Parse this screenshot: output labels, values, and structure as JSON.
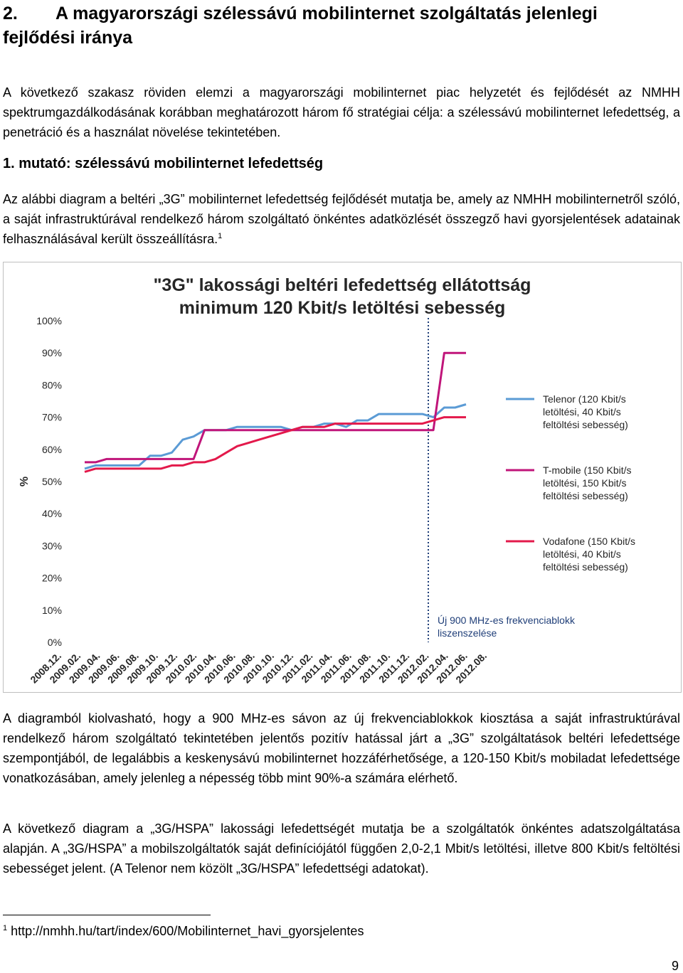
{
  "heading": {
    "number": "2.",
    "title": "A magyarországi szélessávú mobilinternet szolgáltatás jelenlegi fejlődési iránya"
  },
  "intro": "A következő szakasz röviden elemzi a magyarországi mobilinternet piac helyzetét és fejlődését az NMHH spektrumgazdálkodásának korábban meghatározott három fő stratégiai célja: a szélessávú mobilinternet lefedettség, a penetráció és a használat növelése tekintetében.",
  "subheading": "1. mutató: szélessávú mobilinternet lefedettség",
  "para2": "Az alábbi diagram a beltéri „3G” mobilinternet lefedettség fejlődését mutatja be, amely az NMHH mobilinternetről szóló, a saját infrastruktúrával rendelkező három szolgáltató önkéntes adatközlését összegző havi gyorsjelentések adatainak felhasználásával került összeállításra.",
  "para2_footnote_ref": "1",
  "para3": "A diagramból kiolvasható, hogy a 900 MHz-es sávon az új frekvenciablokkok kiosztása a saját infrastruktúrával rendelkező három szolgáltató tekintetében jelentős pozitív hatással járt a „3G” szolgáltatások beltéri lefedettsége szempontjából, de legalábbis a keskenysávú mobilinternet hozzáférhetősége, a 120-150 Kbit/s mobiladat lefedettsége vonatkozásában, amely jelenleg a népesség több mint 90%-a számára elérhető.",
  "para4": "A következő diagram a „3G/HSPA” lakossági lefedettségét mutatja be a szolgáltatók önkéntes adatszolgáltatása alapján. A „3G/HSPA” a mobilszolgáltatók saját definíciójától függően 2,0-2,1 Mbit/s letöltési, illetve 800 Kbit/s feltöltési sebességet jelent. (A Telenor nem közölt „3G/HSPA” lefedettségi adatokat).",
  "footnote": {
    "num": "1",
    "text": "http://nmhh.hu/tart/index/600/Mobilinternet_havi_gyorsjelentes"
  },
  "page_number": "9",
  "chart_data": {
    "type": "line",
    "title_line1": "\"3G\" lakossági beltéri lefedettség ellátottság",
    "title_line2": "minimum 120 Kbit/s letöltési sebesség",
    "ylabel": "%",
    "ylim": [
      0,
      100
    ],
    "y_ticks": [
      "0%",
      "10%",
      "20%",
      "30%",
      "40%",
      "50%",
      "60%",
      "70%",
      "80%",
      "90%",
      "100%"
    ],
    "x_labels": [
      "2008.12.",
      "2009.02.",
      "2009.04.",
      "2009.06.",
      "2009.08.",
      "2009.10.",
      "2009.12.",
      "2010.02.",
      "2010.04.",
      "2010.06.",
      "2010.08.",
      "2010.10.",
      "2010.12.",
      "2011.02.",
      "2011.04.",
      "2011.06.",
      "2011.08.",
      "2011.10.",
      "2011.12.",
      "2012.02.",
      "2012.04.",
      "2012.06.",
      "2012.08."
    ],
    "grid": false,
    "legend_position": "right",
    "series": [
      {
        "name": "Telenor (120 Kbit/s letöltési, 40 Kbit/s feltöltési sebesség)",
        "legend_lines": [
          "Telenor (120 Kbit/s",
          "letöltési, 40 Kbit/s",
          "feltöltési sebesség)"
        ],
        "color": "#5b9bd5",
        "values": [
          54,
          55,
          55,
          55,
          55,
          55,
          58,
          58,
          59,
          63,
          64,
          66,
          66,
          66,
          67,
          67,
          67,
          67,
          67,
          66,
          67,
          67,
          68,
          68,
          67,
          69,
          69,
          71,
          71,
          71,
          71,
          71,
          70,
          73,
          73,
          74
        ]
      },
      {
        "name": "T-mobile (150 Kbit/s letöltési, 150 Kbit/s feltöltési sebesség)",
        "legend_lines": [
          "T-mobile (150 Kbit/s",
          "letöltési, 150 Kbit/s",
          "feltöltési sebesség)"
        ],
        "color": "#c0157a",
        "values": [
          56,
          56,
          57,
          57,
          57,
          57,
          57,
          57,
          57,
          57,
          57,
          66,
          66,
          66,
          66,
          66,
          66,
          66,
          66,
          66,
          66,
          66,
          66,
          66,
          66,
          66,
          66,
          66,
          66,
          66,
          66,
          66,
          66,
          90,
          90,
          90
        ]
      },
      {
        "name": "Vodafone (150 Kbit/s letöltési, 40 Kbit/s feltöltési sebesség)",
        "legend_lines": [
          "Vodafone (150 Kbit/s",
          "letöltési, 40 Kbit/s",
          "feltöltési sebesség)"
        ],
        "color": "#e3194b",
        "values": [
          53,
          54,
          54,
          54,
          54,
          54,
          54,
          54,
          55,
          55,
          56,
          56,
          57,
          59,
          61,
          62,
          63,
          64,
          65,
          66,
          67,
          67,
          67,
          68,
          68,
          68,
          68,
          68,
          68,
          68,
          68,
          68,
          69,
          70,
          70,
          70
        ]
      }
    ],
    "annotation_lines": [
      "Új 900 MHz-es frekvenciablokk",
      "liszenszelése"
    ]
  }
}
